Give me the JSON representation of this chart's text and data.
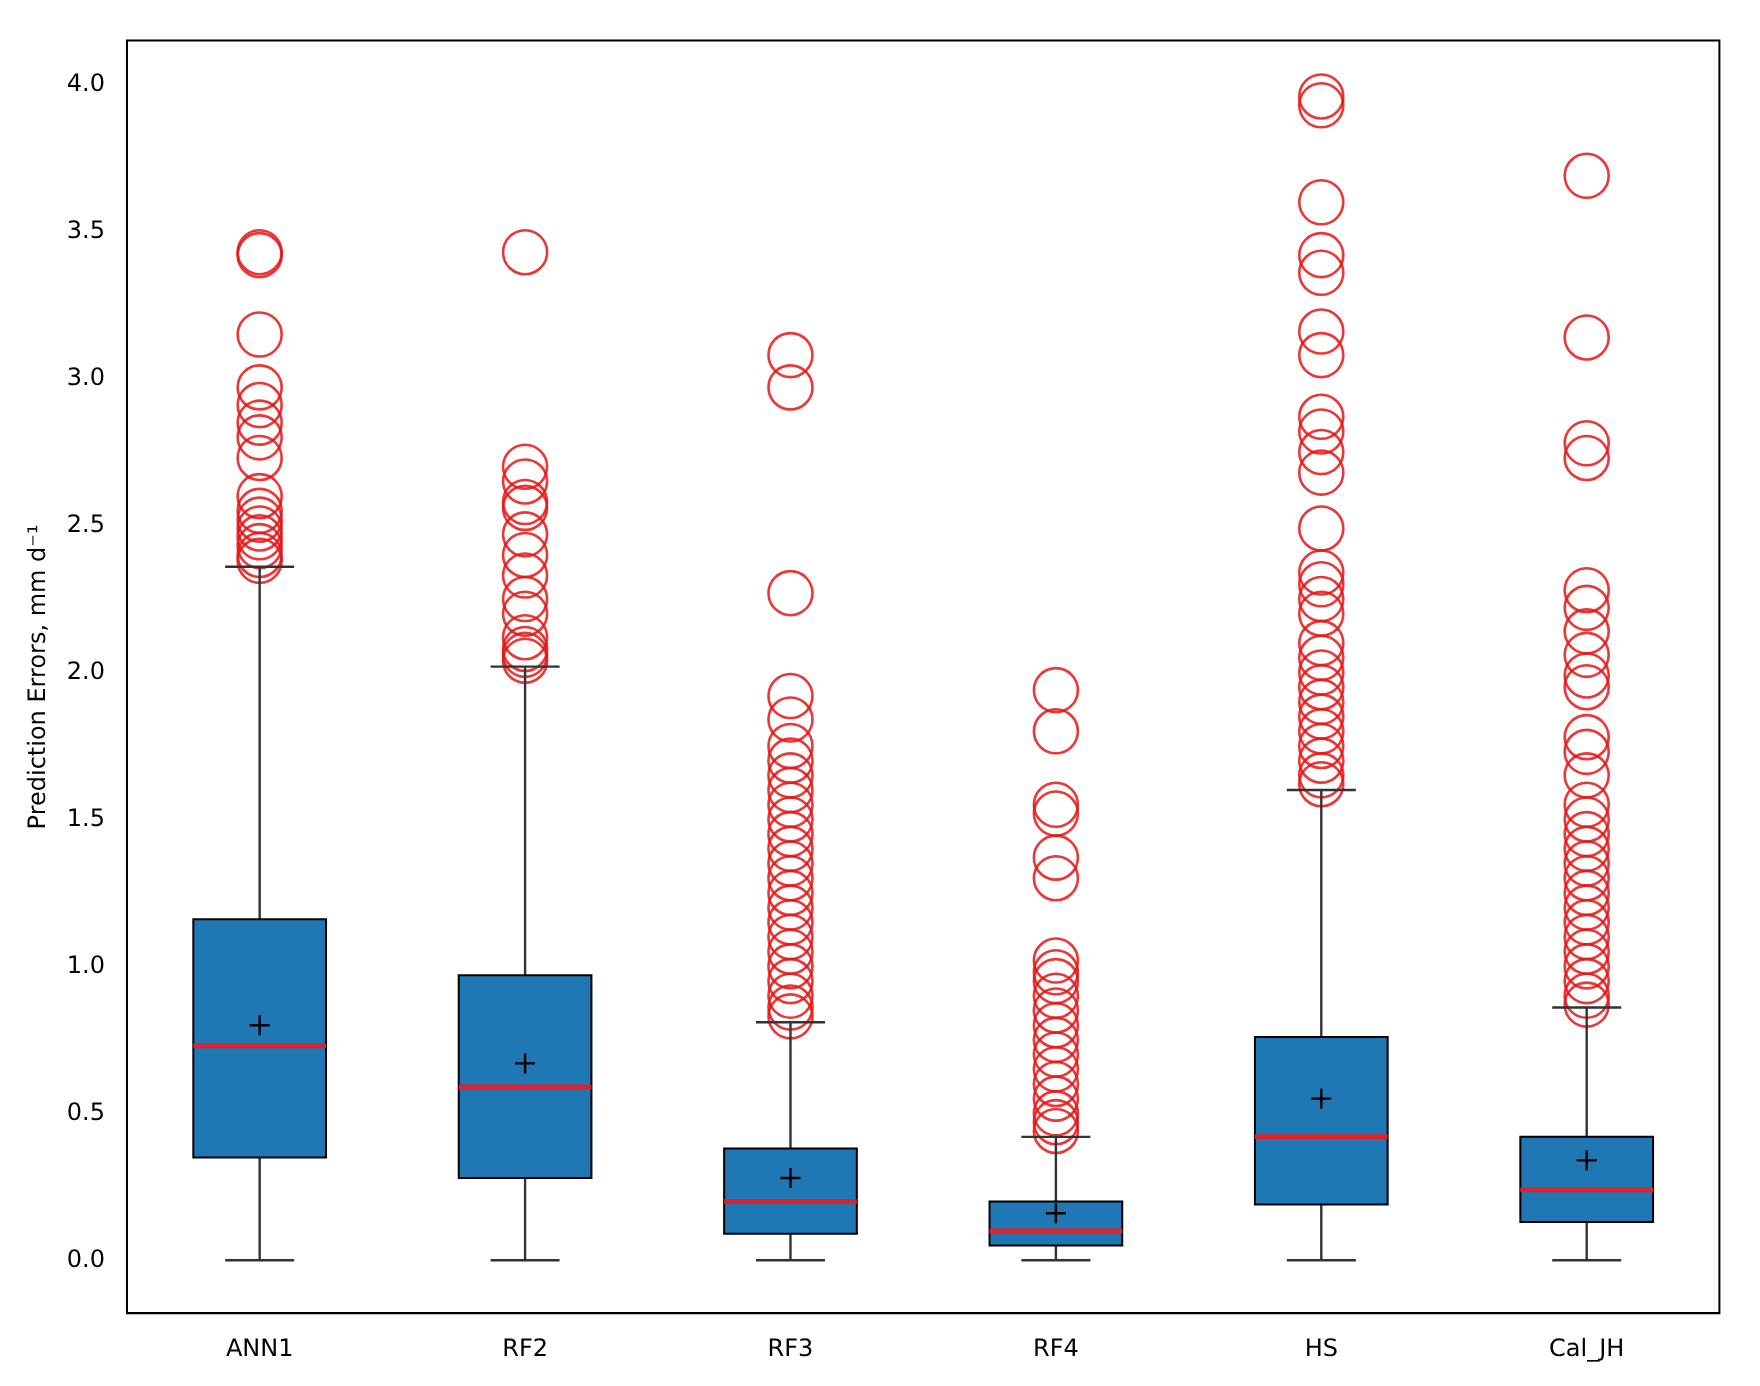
{
  "chart_data": {
    "type": "box",
    "ylabel": "Prediction Errors, mm d⁻¹",
    "categories": [
      "ANN1",
      "RF2",
      "RF3",
      "RF4",
      "HS",
      "Cal_JH"
    ],
    "color": "#1f77b4",
    "ylim": [
      -0.18,
      4.15
    ],
    "yticks": [
      {
        "value": 0,
        "label": "0.0"
      },
      0.5,
      {
        "value": 1,
        "label": "1.0"
      },
      1.5,
      {
        "value": 2,
        "label": "2.0"
      },
      2.5,
      {
        "value": 3,
        "label": "3.0"
      },
      3.5,
      {
        "value": 4,
        "label": "4.0"
      }
    ],
    "grid": false,
    "legend": false,
    "boxes": [
      {
        "low": 0,
        "q1": 0.35,
        "median": 0.73,
        "q3": 1.16,
        "high": 2.36,
        "mean": 0.8,
        "outliers": [
          3.42,
          3.43,
          3.15,
          2.97,
          2.91,
          2.85,
          2.8,
          2.73,
          2.6,
          2.55,
          2.52,
          2.49,
          2.46,
          2.43,
          2.4,
          2.38
        ]
      },
      {
        "low": 0,
        "q1": 0.28,
        "median": 0.59,
        "q3": 0.97,
        "high": 2.02,
        "mean": 0.67,
        "outliers": [
          3.43,
          2.7,
          2.65,
          2.58,
          2.56,
          2.47,
          2.4,
          2.33,
          2.25,
          2.2,
          2.12,
          2.08,
          2.06,
          2.04
        ]
      },
      {
        "low": 0,
        "q1": 0.09,
        "median": 0.2,
        "q3": 0.38,
        "high": 0.81,
        "mean": 0.28,
        "outliers": [
          3.08,
          2.97,
          2.27,
          1.92,
          1.84,
          1.75,
          1.7,
          1.65,
          1.6,
          1.55,
          1.5,
          1.45,
          1.4,
          1.35,
          1.3,
          1.25,
          1.2,
          1.15,
          1.1,
          1.05,
          1.0,
          0.95,
          0.9,
          0.86,
          0.83
        ]
      },
      {
        "low": 0,
        "q1": 0.05,
        "median": 0.1,
        "q3": 0.2,
        "high": 0.42,
        "mean": 0.16,
        "outliers": [
          1.94,
          1.8,
          1.55,
          1.52,
          1.37,
          1.3,
          1.02,
          0.98,
          0.95,
          0.9,
          0.85,
          0.8,
          0.75,
          0.7,
          0.65,
          0.6,
          0.55,
          0.5,
          0.47,
          0.44
        ]
      },
      {
        "low": 0,
        "q1": 0.19,
        "median": 0.42,
        "q3": 0.76,
        "high": 1.6,
        "mean": 0.55,
        "outliers": [
          3.96,
          3.93,
          3.6,
          3.42,
          3.36,
          3.16,
          3.08,
          2.87,
          2.82,
          2.75,
          2.68,
          2.49,
          2.34,
          2.3,
          2.25,
          2.2,
          2.1,
          2.05,
          2.0,
          1.95,
          1.9,
          1.85,
          1.8,
          1.75,
          1.7,
          1.65,
          1.62
        ]
      },
      {
        "low": 0,
        "q1": 0.13,
        "median": 0.24,
        "q3": 0.42,
        "high": 0.86,
        "mean": 0.34,
        "outliers": [
          3.69,
          3.14,
          2.78,
          2.73,
          2.28,
          2.22,
          2.14,
          2.06,
          1.99,
          1.95,
          1.78,
          1.73,
          1.65,
          1.55,
          1.5,
          1.45,
          1.4,
          1.35,
          1.3,
          1.25,
          1.2,
          1.15,
          1.1,
          1.05,
          1.0,
          0.95,
          0.9,
          0.87
        ]
      }
    ]
  }
}
